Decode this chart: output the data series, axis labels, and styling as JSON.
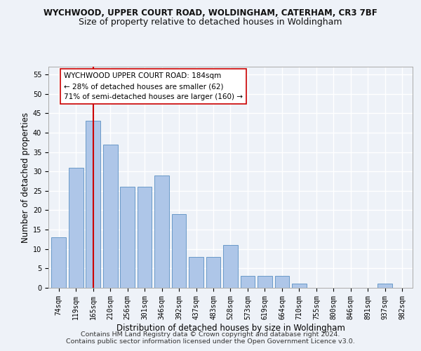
{
  "title1": "WYCHWOOD, UPPER COURT ROAD, WOLDINGHAM, CATERHAM, CR3 7BF",
  "title2": "Size of property relative to detached houses in Woldingham",
  "xlabel": "Distribution of detached houses by size in Woldingham",
  "ylabel": "Number of detached properties",
  "categories": [
    "74sqm",
    "119sqm",
    "165sqm",
    "210sqm",
    "256sqm",
    "301sqm",
    "346sqm",
    "392sqm",
    "437sqm",
    "483sqm",
    "528sqm",
    "573sqm",
    "619sqm",
    "664sqm",
    "710sqm",
    "755sqm",
    "800sqm",
    "846sqm",
    "891sqm",
    "937sqm",
    "982sqm"
  ],
  "values": [
    13,
    31,
    43,
    37,
    26,
    26,
    29,
    19,
    8,
    8,
    11,
    3,
    3,
    3,
    1,
    0,
    0,
    0,
    0,
    1,
    0
  ],
  "bar_color": "#aec6e8",
  "bar_edge_color": "#5a8fc2",
  "vline_x": 2,
  "vline_color": "#cc0000",
  "annotation_text": "WYCHWOOD UPPER COURT ROAD: 184sqm\n← 28% of detached houses are smaller (62)\n71% of semi-detached houses are larger (160) →",
  "annotation_box_color": "#ffffff",
  "annotation_box_edge": "#cc0000",
  "ylim": [
    0,
    57
  ],
  "yticks": [
    0,
    5,
    10,
    15,
    20,
    25,
    30,
    35,
    40,
    45,
    50,
    55
  ],
  "footer1": "Contains HM Land Registry data © Crown copyright and database right 2024.",
  "footer2": "Contains public sector information licensed under the Open Government Licence v3.0.",
  "bg_color": "#eef2f8",
  "grid_color": "#ffffff",
  "title1_fontsize": 8.5,
  "title2_fontsize": 9,
  "tick_fontsize": 7,
  "label_fontsize": 8.5,
  "xlabel_fontsize": 8.5,
  "footer_fontsize": 6.8,
  "annot_fontsize": 7.5
}
